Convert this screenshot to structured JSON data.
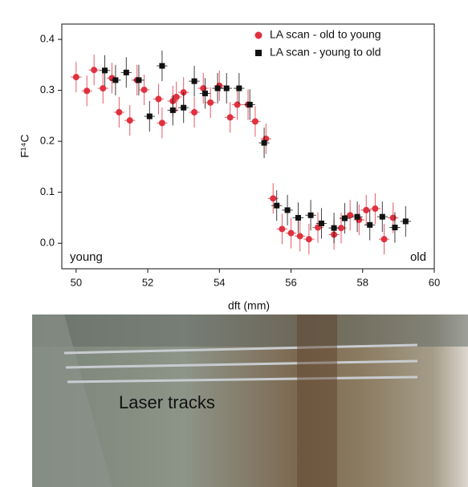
{
  "chart_data": {
    "type": "scatter",
    "x_label": "dft (mm)",
    "y_label": "F¹⁴C",
    "xlim": [
      49.6,
      60
    ],
    "ylim": [
      -0.05,
      0.43
    ],
    "xticks": [
      50,
      52,
      54,
      56,
      58,
      60
    ],
    "yticks": [
      {
        "value": 0,
        "label": "0.0"
      },
      0.1,
      0.2,
      0.3,
      0.4
    ],
    "legend": "upper right",
    "annotations": [
      "young",
      "old"
    ],
    "series": [
      {
        "name": "LA scan - old to young",
        "color": "#e0313f",
        "marker": "circle",
        "xerr": 0.15,
        "yerr": 0.03,
        "x": [
          50.0,
          50.3,
          50.5,
          50.75,
          51.0,
          51.2,
          51.5,
          51.7,
          51.9,
          52.3,
          52.4,
          52.7,
          52.8,
          53.0,
          53.3,
          53.55,
          53.75,
          54.0,
          54.3,
          54.5,
          54.8,
          55.0,
          55.3,
          55.5,
          55.75,
          56.0,
          56.25,
          56.5,
          56.75,
          57.2,
          57.4,
          57.65,
          57.9,
          58.1,
          58.35,
          58.6,
          58.85
        ],
        "values": [
          0.326,
          0.299,
          0.34,
          0.304,
          0.324,
          0.257,
          0.241,
          0.32,
          0.301,
          0.283,
          0.236,
          0.279,
          0.287,
          0.296,
          0.257,
          0.304,
          0.276,
          0.309,
          0.247,
          0.272,
          0.272,
          0.239,
          0.205,
          0.088,
          0.028,
          0.02,
          0.014,
          0.008,
          0.031,
          0.017,
          0.03,
          0.055,
          0.046,
          0.065,
          0.068,
          0.008,
          0.05
        ]
      },
      {
        "name": "LA scan - young to old",
        "color": "#111111",
        "marker": "square",
        "xerr": 0.15,
        "yerr": 0.03,
        "x": [
          50.8,
          51.1,
          51.4,
          51.75,
          52.05,
          52.4,
          52.7,
          53.0,
          53.3,
          53.6,
          53.95,
          54.2,
          54.55,
          54.85,
          55.25,
          55.6,
          55.9,
          56.2,
          56.55,
          56.85,
          57.2,
          57.5,
          57.85,
          58.2,
          58.55,
          58.9,
          59.2
        ],
        "values": [
          0.339,
          0.32,
          0.335,
          0.32,
          0.249,
          0.348,
          0.261,
          0.266,
          0.318,
          0.294,
          0.304,
          0.304,
          0.304,
          0.272,
          0.197,
          0.074,
          0.065,
          0.05,
          0.055,
          0.039,
          0.03,
          0.049,
          0.052,
          0.036,
          0.052,
          0.031,
          0.043
        ]
      }
    ]
  },
  "photo": {
    "label": "Laser tracks"
  }
}
